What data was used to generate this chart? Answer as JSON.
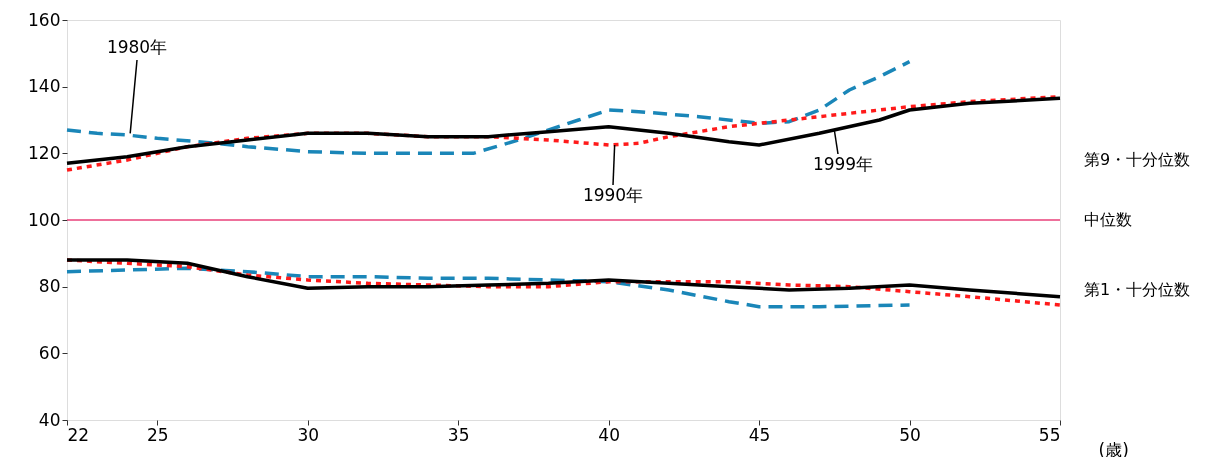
{
  "chart_data": {
    "type": "line",
    "xlabel": "(歳)",
    "xlim": [
      22,
      55
    ],
    "xticks": [
      22,
      25,
      30,
      35,
      40,
      45,
      50,
      55
    ],
    "ylim": [
      40,
      160
    ],
    "yticks": [
      40,
      60,
      80,
      100,
      120,
      140,
      160
    ],
    "marker": "none",
    "series": [
      {
        "color": "#1a86b8",
        "line_style": "dashed",
        "x": [
          22,
          23,
          24,
          25,
          27,
          28,
          30,
          32,
          34,
          35.5,
          37,
          39,
          40,
          41,
          43,
          45,
          46,
          47,
          48,
          49,
          50
        ],
        "values": [
          127,
          126,
          125.5,
          124.5,
          123,
          122,
          120.5,
          120,
          120,
          120,
          124,
          130,
          133,
          132.5,
          131,
          129,
          129.5,
          133,
          139,
          143,
          147.5
        ]
      },
      {
        "color": "#ff1a1a",
        "line_style": "dotted",
        "x": [
          22,
          24,
          26,
          28,
          30,
          32,
          34,
          36,
          38,
          40,
          41,
          42,
          44,
          46,
          48,
          50,
          52,
          55
        ],
        "values": [
          115,
          118,
          122,
          124.5,
          126,
          126,
          125,
          125,
          124,
          122.5,
          123,
          125,
          128,
          130,
          132,
          134,
          135.5,
          137
        ]
      },
      {
        "color": "#000000",
        "line_style": "solid",
        "x": [
          22,
          24,
          26,
          28,
          30,
          32,
          34,
          36,
          38,
          40,
          42,
          44,
          45,
          47,
          49,
          50,
          52,
          55
        ],
        "values": [
          117,
          119,
          122,
          124,
          126,
          126,
          125,
          125,
          126.5,
          128,
          126,
          123.5,
          122.5,
          126,
          130,
          133,
          135,
          136.5
        ]
      },
      {
        "color": "#1a86b8",
        "line_style": "dashed",
        "x": [
          22,
          24,
          26,
          28,
          30,
          32,
          34,
          36,
          38,
          40,
          42,
          44,
          45,
          47,
          50
        ],
        "values": [
          84.5,
          85,
          85.5,
          84.5,
          83,
          83,
          82.5,
          82.5,
          82,
          81.5,
          79,
          75.5,
          74,
          74,
          74.5
        ]
      },
      {
        "color": "#ff1a1a",
        "line_style": "dotted",
        "x": [
          22,
          24,
          26,
          28,
          30,
          32,
          34,
          36,
          38,
          40,
          42,
          44,
          46,
          48,
          50,
          52,
          55
        ],
        "values": [
          88,
          87,
          86,
          83.5,
          82,
          81,
          80.5,
          80,
          80,
          81.5,
          81.5,
          81.5,
          80.5,
          80,
          78.5,
          77,
          74.5
        ]
      },
      {
        "color": "#000000",
        "line_style": "solid",
        "x": [
          22,
          24,
          26,
          28,
          30,
          32,
          34,
          36,
          38,
          40,
          42,
          44,
          46,
          48,
          50,
          52,
          55
        ],
        "values": [
          88,
          88,
          87,
          83,
          79.5,
          80,
          80,
          80.5,
          81,
          82,
          81,
          80,
          79,
          79.5,
          80.5,
          79,
          77
        ]
      }
    ],
    "ref_lines": [
      {
        "axis": "y",
        "value": 100,
        "color": "#e8407a"
      }
    ],
    "annotations": [
      {
        "text": "1980年",
        "x": 24.1,
        "y": 126
      },
      {
        "text": "1990年",
        "x": 40.2,
        "y": 122.5
      },
      {
        "text": "1999年",
        "x": 47.5,
        "y": 127
      },
      "第9・十分位数",
      "中位数",
      "第1・十分位数"
    ]
  }
}
